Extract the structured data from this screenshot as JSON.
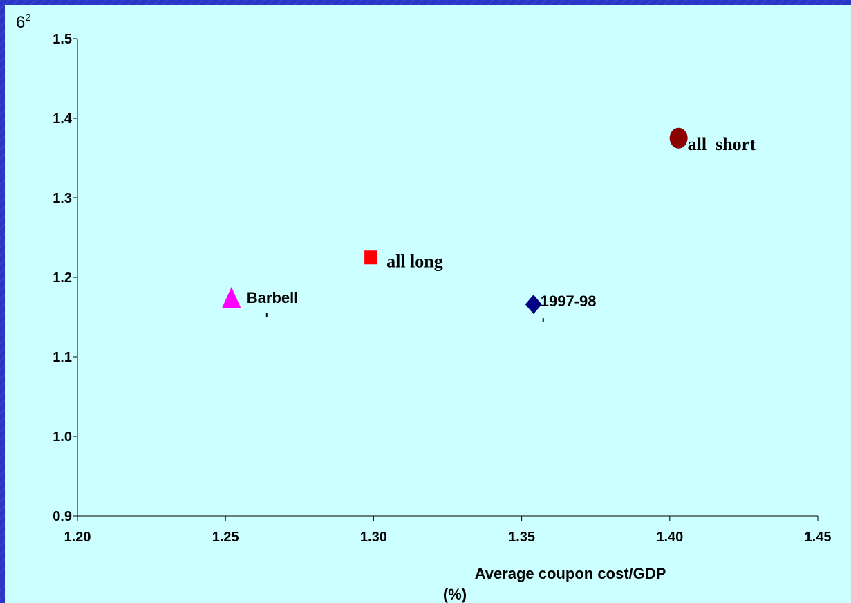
{
  "chart_data": {
    "type": "scatter",
    "ylabel_base": "6",
    "ylabel_sup": "2",
    "xlabel_line1": "Average coupon cost/GDP",
    "xlabel_line2": "(%)",
    "xlim": [
      1.2,
      1.45
    ],
    "ylim": [
      0.9,
      1.5
    ],
    "x_ticks": [
      "1.20",
      "1.25",
      "1.30",
      "1.35",
      "1.40",
      "1.45"
    ],
    "y_ticks": [
      "0.9",
      "1.0",
      "1.1",
      "1.2",
      "1.3",
      "1.4",
      "1.5"
    ],
    "grid": false,
    "points": [
      {
        "label": "all  short",
        "x": 1.403,
        "y": 1.375,
        "marker": "circle",
        "color": "#8b0000"
      },
      {
        "label": "all long",
        "x": 1.299,
        "y": 1.225,
        "marker": "square",
        "color": "#ff0000"
      },
      {
        "label": "Barbell",
        "x": 1.252,
        "y": 1.173,
        "marker": "triangle",
        "color": "#ff00ff"
      },
      {
        "label": "1997-98",
        "x": 1.354,
        "y": 1.166,
        "marker": "diamond",
        "color": "#000080"
      }
    ]
  }
}
